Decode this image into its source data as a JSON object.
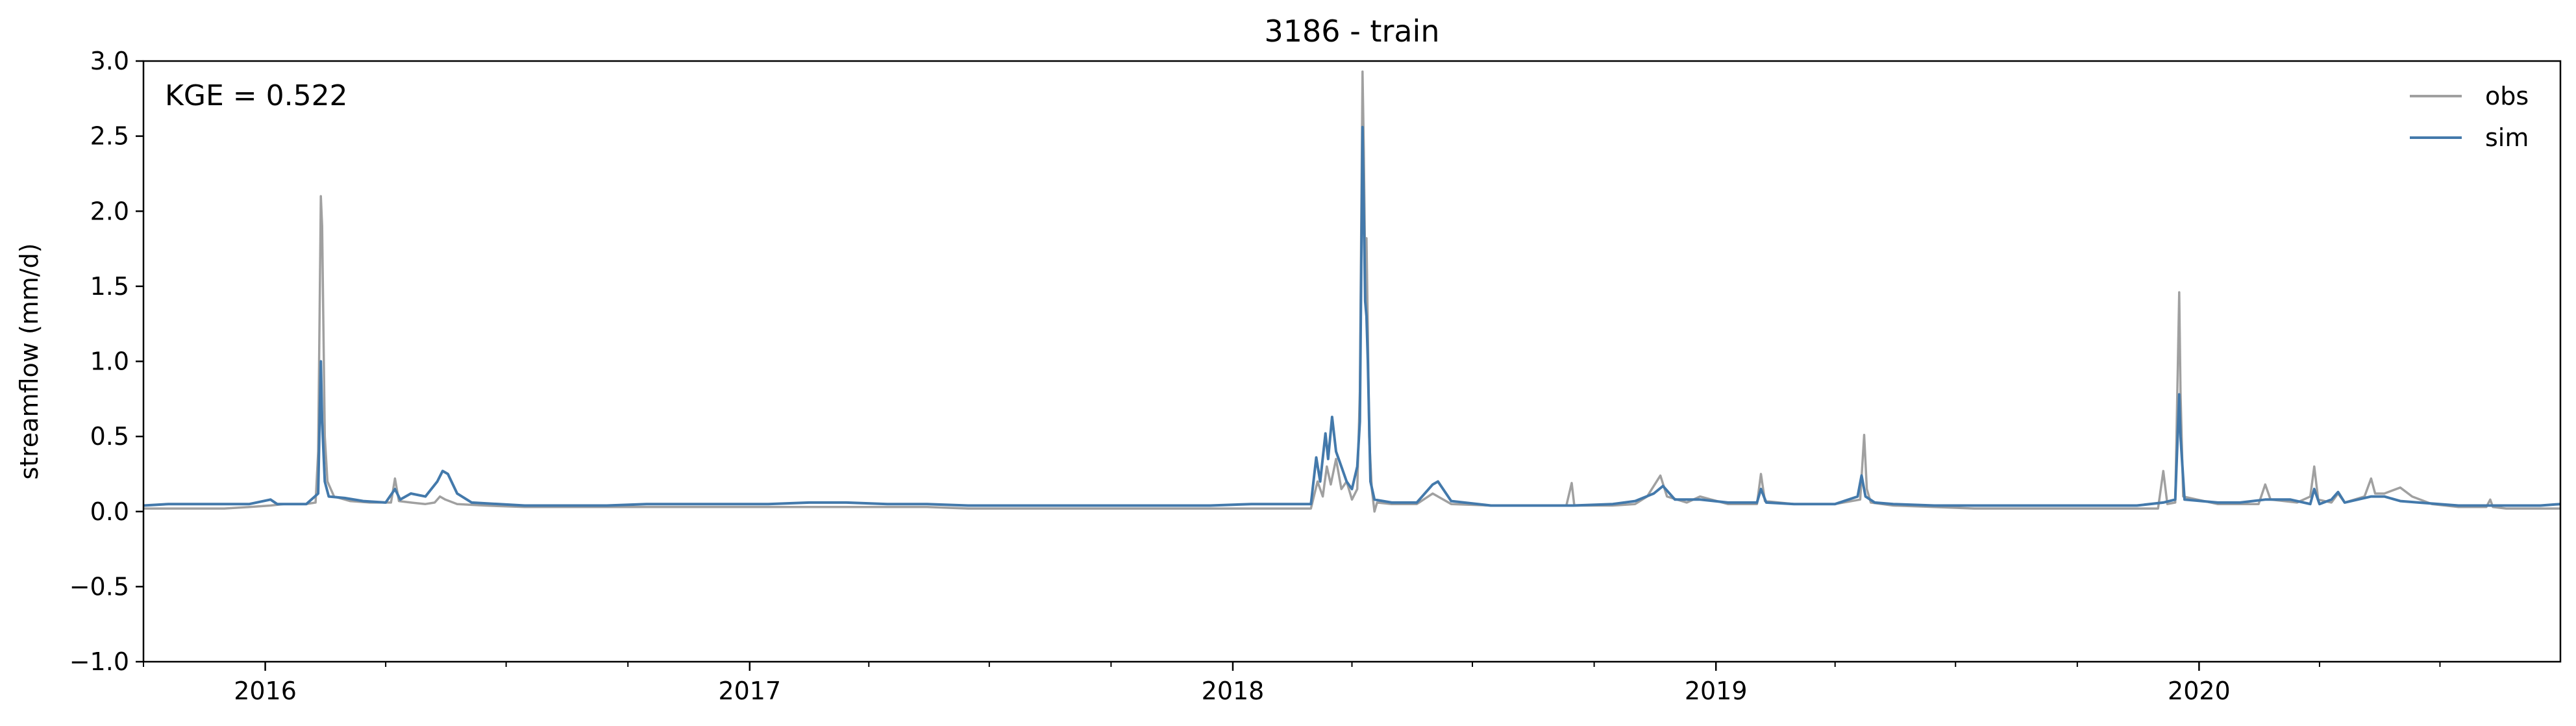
{
  "chart_data": {
    "type": "line",
    "title": "3186 - train",
    "xlabel": "",
    "ylabel": "streamflow (mm/d)",
    "annotation": "KGE = 0.522",
    "xlim": [
      "2015-10-01",
      "2020-09-30"
    ],
    "ylim": [
      -1.0,
      3.0
    ],
    "yticks": [
      -1.0,
      -0.5,
      0.0,
      0.5,
      1.0,
      1.5,
      2.0,
      2.5,
      3.0
    ],
    "ytick_labels": [
      "−1.0",
      "−0.5",
      "0.0",
      "0.5",
      "1.0",
      "1.5",
      "2.0",
      "2.5",
      "3.0"
    ],
    "xticks": [
      "2016-01-01",
      "2017-01-01",
      "2018-01-01",
      "2019-01-01",
      "2020-01-01"
    ],
    "xtick_labels": [
      "2016",
      "2017",
      "2018",
      "2019",
      "2020"
    ],
    "grid": false,
    "legend_position": "top-right",
    "colors": {
      "obs": "#a0a0a0",
      "sim": "#4379ab"
    },
    "series": [
      {
        "name": "obs",
        "points": [
          [
            "2015-10-01",
            0.02
          ],
          [
            "2015-10-20",
            0.02
          ],
          [
            "2015-11-10",
            0.02
          ],
          [
            "2015-12-01",
            0.02
          ],
          [
            "2015-12-20",
            0.03
          ],
          [
            "2016-01-05",
            0.04
          ],
          [
            "2016-01-15",
            0.05
          ],
          [
            "2016-02-01",
            0.05
          ],
          [
            "2016-02-08",
            0.06
          ],
          [
            "2016-02-10",
            0.4
          ],
          [
            "2016-02-12",
            2.1
          ],
          [
            "2016-02-13",
            1.9
          ],
          [
            "2016-02-15",
            0.5
          ],
          [
            "2016-02-17",
            0.2
          ],
          [
            "2016-02-22",
            0.1
          ],
          [
            "2016-03-05",
            0.07
          ],
          [
            "2016-03-20",
            0.06
          ],
          [
            "2016-04-05",
            0.06
          ],
          [
            "2016-04-08",
            0.22
          ],
          [
            "2016-04-11",
            0.07
          ],
          [
            "2016-04-20",
            0.06
          ],
          [
            "2016-05-01",
            0.05
          ],
          [
            "2016-05-08",
            0.06
          ],
          [
            "2016-05-12",
            0.1
          ],
          [
            "2016-05-16",
            0.08
          ],
          [
            "2016-05-25",
            0.05
          ],
          [
            "2016-06-15",
            0.04
          ],
          [
            "2016-07-15",
            0.03
          ],
          [
            "2016-08-15",
            0.03
          ],
          [
            "2016-09-15",
            0.03
          ],
          [
            "2016-10-15",
            0.03
          ],
          [
            "2016-11-15",
            0.03
          ],
          [
            "2016-12-15",
            0.03
          ],
          [
            "2017-01-15",
            0.03
          ],
          [
            "2017-02-15",
            0.03
          ],
          [
            "2017-03-15",
            0.03
          ],
          [
            "2017-04-15",
            0.03
          ],
          [
            "2017-05-15",
            0.03
          ],
          [
            "2017-06-15",
            0.02
          ],
          [
            "2017-07-15",
            0.02
          ],
          [
            "2017-08-15",
            0.02
          ],
          [
            "2017-09-15",
            0.02
          ],
          [
            "2017-10-15",
            0.02
          ],
          [
            "2017-11-15",
            0.02
          ],
          [
            "2017-12-15",
            0.02
          ],
          [
            "2018-01-15",
            0.02
          ],
          [
            "2018-02-15",
            0.02
          ],
          [
            "2018-03-01",
            0.02
          ],
          [
            "2018-03-06",
            0.2
          ],
          [
            "2018-03-10",
            0.1
          ],
          [
            "2018-03-13",
            0.3
          ],
          [
            "2018-03-16",
            0.18
          ],
          [
            "2018-03-20",
            0.35
          ],
          [
            "2018-03-24",
            0.15
          ],
          [
            "2018-03-28",
            0.2
          ],
          [
            "2018-04-01",
            0.08
          ],
          [
            "2018-04-05",
            0.15
          ],
          [
            "2018-04-07",
            0.8
          ],
          [
            "2018-04-09",
            2.93
          ],
          [
            "2018-04-10",
            2.4
          ],
          [
            "2018-04-11",
            1.6
          ],
          [
            "2018-04-12",
            1.82
          ],
          [
            "2018-04-13",
            1.2
          ],
          [
            "2018-04-14",
            0.5
          ],
          [
            "2018-04-16",
            0.15
          ],
          [
            "2018-04-18",
            0.0
          ],
          [
            "2018-04-20",
            0.06
          ],
          [
            "2018-05-01",
            0.05
          ],
          [
            "2018-05-20",
            0.05
          ],
          [
            "2018-06-01",
            0.12
          ],
          [
            "2018-06-05",
            0.1
          ],
          [
            "2018-06-15",
            0.05
          ],
          [
            "2018-07-15",
            0.04
          ],
          [
            "2018-08-15",
            0.04
          ],
          [
            "2018-09-10",
            0.04
          ],
          [
            "2018-09-14",
            0.19
          ],
          [
            "2018-09-16",
            0.04
          ],
          [
            "2018-10-15",
            0.04
          ],
          [
            "2018-11-01",
            0.05
          ],
          [
            "2018-11-10",
            0.1
          ],
          [
            "2018-11-20",
            0.24
          ],
          [
            "2018-11-25",
            0.1
          ],
          [
            "2018-12-10",
            0.06
          ],
          [
            "2018-12-20",
            0.1
          ],
          [
            "2019-01-10",
            0.05
          ],
          [
            "2019-02-01",
            0.05
          ],
          [
            "2019-02-04",
            0.25
          ],
          [
            "2019-02-07",
            0.07
          ],
          [
            "2019-03-01",
            0.05
          ],
          [
            "2019-04-01",
            0.05
          ],
          [
            "2019-04-20",
            0.08
          ],
          [
            "2019-04-23",
            0.51
          ],
          [
            "2019-04-25",
            0.15
          ],
          [
            "2019-04-28",
            0.06
          ],
          [
            "2019-05-15",
            0.04
          ],
          [
            "2019-06-15",
            0.03
          ],
          [
            "2019-07-15",
            0.02
          ],
          [
            "2019-08-15",
            0.02
          ],
          [
            "2019-09-15",
            0.02
          ],
          [
            "2019-10-15",
            0.02
          ],
          [
            "2019-11-15",
            0.02
          ],
          [
            "2019-12-01",
            0.02
          ],
          [
            "2019-12-05",
            0.27
          ],
          [
            "2019-12-08",
            0.05
          ],
          [
            "2019-12-14",
            0.06
          ],
          [
            "2019-12-17",
            1.46
          ],
          [
            "2019-12-18",
            0.8
          ],
          [
            "2019-12-20",
            0.1
          ],
          [
            "2020-01-15",
            0.05
          ],
          [
            "2020-02-01",
            0.05
          ],
          [
            "2020-02-15",
            0.05
          ],
          [
            "2020-02-20",
            0.18
          ],
          [
            "2020-02-24",
            0.08
          ],
          [
            "2020-03-15",
            0.06
          ],
          [
            "2020-03-25",
            0.1
          ],
          [
            "2020-03-28",
            0.3
          ],
          [
            "2020-03-31",
            0.08
          ],
          [
            "2020-04-10",
            0.06
          ],
          [
            "2020-04-15",
            0.12
          ],
          [
            "2020-04-20",
            0.06
          ],
          [
            "2020-05-05",
            0.1
          ],
          [
            "2020-05-10",
            0.22
          ],
          [
            "2020-05-13",
            0.12
          ],
          [
            "2020-05-20",
            0.12
          ],
          [
            "2020-06-01",
            0.16
          ],
          [
            "2020-06-10",
            0.1
          ],
          [
            "2020-06-25",
            0.05
          ],
          [
            "2020-07-15",
            0.03
          ],
          [
            "2020-08-05",
            0.03
          ],
          [
            "2020-08-08",
            0.08
          ],
          [
            "2020-08-10",
            0.03
          ],
          [
            "2020-08-20",
            0.02
          ],
          [
            "2020-09-30",
            0.02
          ]
        ]
      },
      {
        "name": "sim",
        "points": [
          [
            "2015-10-01",
            0.04
          ],
          [
            "2015-10-20",
            0.05
          ],
          [
            "2015-11-10",
            0.05
          ],
          [
            "2015-12-01",
            0.05
          ],
          [
            "2015-12-20",
            0.05
          ],
          [
            "2016-01-05",
            0.08
          ],
          [
            "2016-01-10",
            0.05
          ],
          [
            "2016-02-01",
            0.05
          ],
          [
            "2016-02-10",
            0.12
          ],
          [
            "2016-02-12",
            1.0
          ],
          [
            "2016-02-13",
            0.6
          ],
          [
            "2016-02-15",
            0.2
          ],
          [
            "2016-02-18",
            0.1
          ],
          [
            "2016-03-01",
            0.09
          ],
          [
            "2016-03-15",
            0.07
          ],
          [
            "2016-04-01",
            0.06
          ],
          [
            "2016-04-08",
            0.15
          ],
          [
            "2016-04-12",
            0.08
          ],
          [
            "2016-04-20",
            0.12
          ],
          [
            "2016-05-01",
            0.1
          ],
          [
            "2016-05-10",
            0.2
          ],
          [
            "2016-05-14",
            0.27
          ],
          [
            "2016-05-18",
            0.25
          ],
          [
            "2016-05-25",
            0.12
          ],
          [
            "2016-06-05",
            0.06
          ],
          [
            "2016-07-15",
            0.04
          ],
          [
            "2016-08-15",
            0.04
          ],
          [
            "2016-09-15",
            0.04
          ],
          [
            "2016-10-15",
            0.05
          ],
          [
            "2016-11-15",
            0.05
          ],
          [
            "2016-12-15",
            0.05
          ],
          [
            "2017-01-15",
            0.05
          ],
          [
            "2017-02-15",
            0.06
          ],
          [
            "2017-03-15",
            0.06
          ],
          [
            "2017-04-15",
            0.05
          ],
          [
            "2017-05-15",
            0.05
          ],
          [
            "2017-06-15",
            0.04
          ],
          [
            "2017-07-15",
            0.04
          ],
          [
            "2017-08-15",
            0.04
          ],
          [
            "2017-09-15",
            0.04
          ],
          [
            "2017-10-15",
            0.04
          ],
          [
            "2017-11-15",
            0.04
          ],
          [
            "2017-12-15",
            0.04
          ],
          [
            "2018-01-15",
            0.05
          ],
          [
            "2018-02-15",
            0.05
          ],
          [
            "2018-03-01",
            0.05
          ],
          [
            "2018-03-05",
            0.36
          ],
          [
            "2018-03-08",
            0.2
          ],
          [
            "2018-03-12",
            0.52
          ],
          [
            "2018-03-14",
            0.35
          ],
          [
            "2018-03-17",
            0.63
          ],
          [
            "2018-03-20",
            0.4
          ],
          [
            "2018-03-24",
            0.3
          ],
          [
            "2018-03-28",
            0.2
          ],
          [
            "2018-04-01",
            0.15
          ],
          [
            "2018-04-05",
            0.3
          ],
          [
            "2018-04-07",
            0.6
          ],
          [
            "2018-04-09",
            2.56
          ],
          [
            "2018-04-10",
            2.0
          ],
          [
            "2018-04-11",
            1.4
          ],
          [
            "2018-04-12",
            1.3
          ],
          [
            "2018-04-13",
            1.0
          ],
          [
            "2018-04-15",
            0.2
          ],
          [
            "2018-04-18",
            0.08
          ],
          [
            "2018-05-01",
            0.06
          ],
          [
            "2018-05-20",
            0.06
          ],
          [
            "2018-06-01",
            0.18
          ],
          [
            "2018-06-05",
            0.2
          ],
          [
            "2018-06-15",
            0.07
          ],
          [
            "2018-07-15",
            0.04
          ],
          [
            "2018-08-15",
            0.04
          ],
          [
            "2018-09-15",
            0.04
          ],
          [
            "2018-10-15",
            0.05
          ],
          [
            "2018-11-01",
            0.07
          ],
          [
            "2018-11-15",
            0.12
          ],
          [
            "2018-11-22",
            0.17
          ],
          [
            "2018-12-01",
            0.08
          ],
          [
            "2018-12-20",
            0.08
          ],
          [
            "2019-01-10",
            0.06
          ],
          [
            "2019-02-01",
            0.06
          ],
          [
            "2019-02-04",
            0.15
          ],
          [
            "2019-02-08",
            0.06
          ],
          [
            "2019-03-01",
            0.05
          ],
          [
            "2019-04-01",
            0.05
          ],
          [
            "2019-04-18",
            0.1
          ],
          [
            "2019-04-21",
            0.24
          ],
          [
            "2019-04-24",
            0.1
          ],
          [
            "2019-05-01",
            0.06
          ],
          [
            "2019-05-15",
            0.05
          ],
          [
            "2019-06-15",
            0.04
          ],
          [
            "2019-07-15",
            0.04
          ],
          [
            "2019-08-15",
            0.04
          ],
          [
            "2019-09-15",
            0.04
          ],
          [
            "2019-10-15",
            0.04
          ],
          [
            "2019-11-15",
            0.04
          ],
          [
            "2019-12-05",
            0.06
          ],
          [
            "2019-12-14",
            0.08
          ],
          [
            "2019-12-17",
            0.78
          ],
          [
            "2019-12-18",
            0.5
          ],
          [
            "2019-12-21",
            0.08
          ],
          [
            "2020-01-15",
            0.06
          ],
          [
            "2020-02-01",
            0.06
          ],
          [
            "2020-02-20",
            0.08
          ],
          [
            "2020-03-10",
            0.08
          ],
          [
            "2020-03-25",
            0.05
          ],
          [
            "2020-03-28",
            0.15
          ],
          [
            "2020-04-01",
            0.05
          ],
          [
            "2020-04-10",
            0.08
          ],
          [
            "2020-04-15",
            0.13
          ],
          [
            "2020-04-20",
            0.06
          ],
          [
            "2020-05-10",
            0.1
          ],
          [
            "2020-05-20",
            0.1
          ],
          [
            "2020-06-01",
            0.07
          ],
          [
            "2020-06-15",
            0.06
          ],
          [
            "2020-07-15",
            0.04
          ],
          [
            "2020-08-15",
            0.04
          ],
          [
            "2020-09-15",
            0.04
          ],
          [
            "2020-09-30",
            0.05
          ]
        ]
      }
    ]
  }
}
